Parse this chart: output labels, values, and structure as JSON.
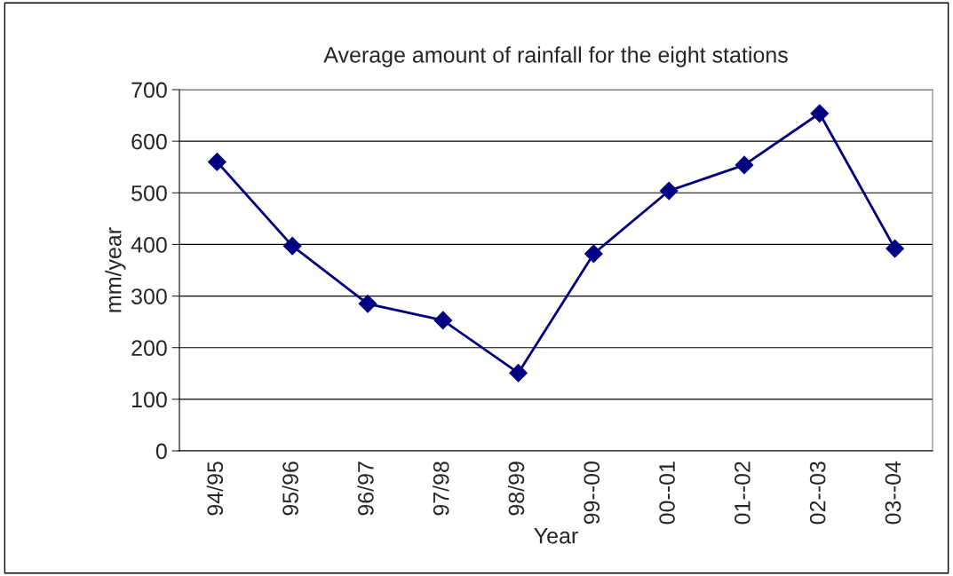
{
  "chart_data": {
    "type": "line",
    "title": "Average amount of rainfall for the eight stations",
    "xlabel": "Year",
    "ylabel": "mm/year",
    "categories": [
      "94/95",
      "95/96",
      "96/97",
      "97/98",
      "98/99",
      "99--00",
      "00--01",
      "01--02",
      "02--03",
      "03--04"
    ],
    "series": [
      {
        "color": "#000080",
        "values": [
          560,
          397,
          285,
          253,
          151,
          382,
          504,
          554,
          654,
          392
        ]
      }
    ],
    "ylim": [
      0,
      700
    ],
    "yticks": [
      0,
      100,
      200,
      300,
      400,
      500,
      600,
      700
    ],
    "grid": "y",
    "marker": "diamond",
    "line_style": "solid",
    "legend": false
  }
}
